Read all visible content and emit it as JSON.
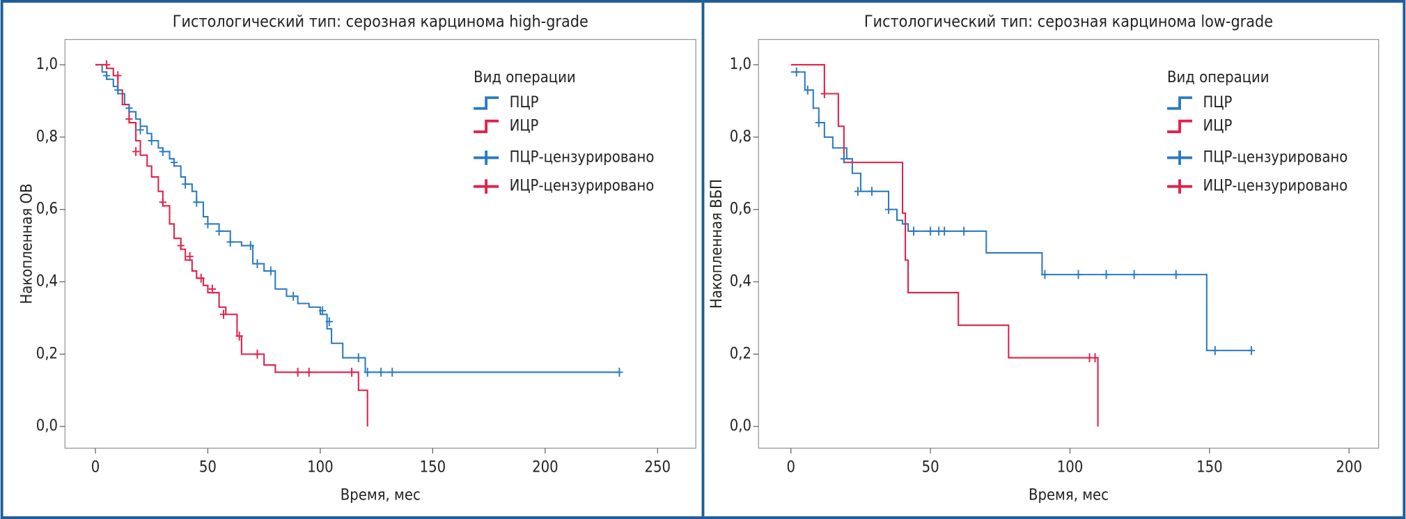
{
  "chart_data": [
    {
      "type": "step",
      "title": "Гистологический тип: серозная карцинома high-grade",
      "x_label": "Время, мес",
      "y_label": "Накопленная ОВ",
      "legend_title": "Вид операции",
      "xlim": [
        -13.5,
        267
      ],
      "ylim": [
        -0.06,
        1.07
      ],
      "xticks": [
        0,
        50,
        100,
        150,
        200,
        250
      ],
      "yticks": [
        {
          "value": 0,
          "label": "0,0"
        },
        {
          "value": 0.2,
          "label": "0,2"
        },
        {
          "value": 0.4,
          "label": "0,4"
        },
        {
          "value": 0.6,
          "label": "0,6"
        },
        {
          "value": 0.8,
          "label": "0,8"
        },
        {
          "value": 1,
          "label": "1,0"
        }
      ],
      "series": [
        {
          "name": "ПЦР",
          "style": "step",
          "color": "#2a7bc0",
          "x": [
            0,
            3,
            5,
            8,
            10,
            13,
            15,
            18,
            20,
            23,
            25,
            28,
            30,
            33,
            35,
            38,
            40,
            43,
            45,
            48,
            50,
            55,
            60,
            65,
            70,
            75,
            80,
            85,
            90,
            95,
            100,
            103,
            105,
            110,
            120,
            233
          ],
          "values": [
            1.0,
            0.98,
            0.96,
            0.94,
            0.92,
            0.89,
            0.87,
            0.85,
            0.83,
            0.81,
            0.79,
            0.77,
            0.76,
            0.74,
            0.72,
            0.69,
            0.67,
            0.65,
            0.62,
            0.58,
            0.56,
            0.54,
            0.51,
            0.5,
            0.45,
            0.43,
            0.38,
            0.36,
            0.34,
            0.33,
            0.31,
            0.27,
            0.23,
            0.19,
            0.15,
            0.15
          ]
        },
        {
          "name": "ИЦР",
          "style": "step",
          "color": "#e0204a",
          "x": [
            0,
            5,
            8,
            10,
            12,
            15,
            18,
            20,
            23,
            25,
            28,
            30,
            33,
            35,
            38,
            40,
            43,
            45,
            48,
            50,
            55,
            58,
            63,
            65,
            70,
            75,
            80,
            85,
            100,
            117,
            121
          ],
          "values": [
            1.0,
            0.99,
            0.97,
            0.93,
            0.89,
            0.84,
            0.79,
            0.75,
            0.72,
            0.69,
            0.65,
            0.61,
            0.56,
            0.52,
            0.49,
            0.46,
            0.43,
            0.41,
            0.39,
            0.37,
            0.33,
            0.31,
            0.25,
            0.2,
            0.2,
            0.17,
            0.15,
            0.15,
            0.15,
            0.1,
            0.0
          ]
        },
        {
          "name": "ПЦР-цензурировано",
          "style": "censor",
          "color": "#2a7bc0",
          "x": [
            5,
            10,
            15,
            20,
            25,
            30,
            35,
            40,
            45,
            50,
            55,
            60,
            69,
            72,
            78,
            88,
            101,
            104,
            117,
            121,
            127,
            132,
            233
          ],
          "values": [
            0.97,
            0.93,
            0.88,
            0.82,
            0.79,
            0.76,
            0.73,
            0.67,
            0.62,
            0.56,
            0.54,
            0.51,
            0.5,
            0.45,
            0.43,
            0.36,
            0.32,
            0.29,
            0.19,
            0.15,
            0.15,
            0.15,
            0.15
          ]
        },
        {
          "name": "ИЦР-цензурировано",
          "style": "censor",
          "color": "#e0204a",
          "x": [
            5,
            10,
            15,
            18,
            30,
            38,
            42,
            47,
            52,
            57,
            64,
            72,
            90,
            95,
            114
          ],
          "values": [
            1.0,
            0.97,
            0.85,
            0.76,
            0.62,
            0.5,
            0.47,
            0.41,
            0.38,
            0.31,
            0.25,
            0.2,
            0.15,
            0.15,
            0.15
          ]
        }
      ]
    },
    {
      "type": "step",
      "title": "Гистологический тип: серозная карцинома low-grade",
      "x_label": "Время, мес",
      "y_label": "Накопленная ВБП",
      "legend_title": "Вид операции",
      "xlim": [
        -11.6,
        210.6
      ],
      "ylim": [
        -0.06,
        1.07
      ],
      "xticks": [
        0,
        50,
        100,
        150,
        200
      ],
      "yticks": [
        {
          "value": 0,
          "label": "0,0"
        },
        {
          "value": 0.2,
          "label": "0,2"
        },
        {
          "value": 0.4,
          "label": "0,4"
        },
        {
          "value": 0.6,
          "label": "0,6"
        },
        {
          "value": 0.8,
          "label": "0,8"
        },
        {
          "value": 1,
          "label": "1,0"
        }
      ],
      "series": [
        {
          "name": "ПЦР",
          "style": "step",
          "color": "#2a7bc0",
          "x": [
            0,
            5,
            8,
            10,
            12,
            15,
            20,
            22,
            25,
            30,
            35,
            38,
            40,
            42,
            70,
            90,
            149,
            165
          ],
          "values": [
            0.98,
            0.93,
            0.88,
            0.84,
            0.8,
            0.77,
            0.74,
            0.7,
            0.65,
            0.65,
            0.6,
            0.57,
            0.56,
            0.54,
            0.48,
            0.42,
            0.21,
            0.21
          ]
        },
        {
          "name": "ИЦР",
          "style": "step",
          "color": "#e0204a",
          "x": [
            0,
            12,
            17,
            19,
            40,
            41,
            42,
            60,
            78,
            110
          ],
          "values": [
            1.0,
            0.92,
            0.83,
            0.73,
            0.59,
            0.46,
            0.37,
            0.28,
            0.19,
            0.0
          ]
        },
        {
          "name": "ПЦР-цензурировано",
          "style": "censor",
          "color": "#2a7bc0",
          "x": [
            2,
            6,
            10,
            19,
            24,
            29,
            35,
            44,
            50,
            53,
            55,
            62,
            91,
            103,
            113,
            123,
            138,
            152,
            165
          ],
          "values": [
            0.98,
            0.93,
            0.84,
            0.74,
            0.65,
            0.65,
            0.6,
            0.54,
            0.54,
            0.54,
            0.54,
            0.54,
            0.42,
            0.42,
            0.42,
            0.42,
            0.42,
            0.21,
            0.21
          ]
        },
        {
          "name": "ИЦР-цензурировано",
          "style": "censor",
          "color": "#e0204a",
          "x": [
            12,
            107,
            109
          ],
          "values": [
            0.92,
            0.19,
            0.19
          ]
        }
      ]
    }
  ]
}
